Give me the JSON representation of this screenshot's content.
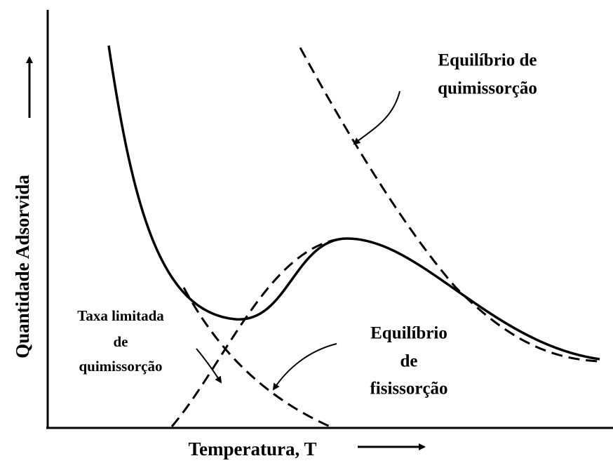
{
  "axes": {
    "y_label": "Quantidade Adsorvida",
    "x_label": "Temperatura, T"
  },
  "annotations": [
    {
      "lines": [
        "Equilíbrio de",
        "quimissorção"
      ]
    },
    {
      "lines": [
        "Taxa limitada",
        "de",
        "quimissorção"
      ]
    },
    {
      "lines": [
        "Equilíbrio",
        "de",
        "fisissorção"
      ]
    }
  ]
}
